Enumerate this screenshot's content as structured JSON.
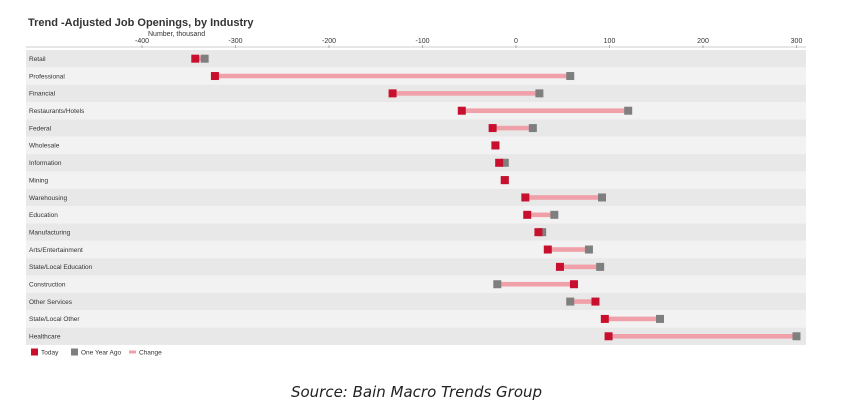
{
  "chart_data": {
    "type": "dumbbell",
    "title": "Trend -Adjusted Job Openings, by Industry",
    "subtitle": "Number, thousand",
    "xlim": [
      -400,
      300
    ],
    "xticks": [
      -400,
      -300,
      -200,
      -100,
      0,
      100,
      200,
      300
    ],
    "categories": [
      "Retail",
      "Professional",
      "Financial",
      "Restaurants/Hotels",
      "Federal",
      "Wholesale",
      "Information",
      "Mining",
      "Warehousing",
      "Education",
      "Manufacturing",
      "Arts/Entertainment",
      "State/Local Education",
      "Construction",
      "Other Services",
      "State/Local Other",
      "Healthcare"
    ],
    "series": [
      {
        "name": "Today",
        "color": "#c8102e",
        "values": [
          -343,
          -322,
          -132,
          -58,
          -25,
          -22,
          -18,
          -12,
          10,
          12,
          24,
          34,
          47,
          62,
          85,
          95,
          99
        ]
      },
      {
        "name": "One Year Ago",
        "color": "#7f7f7f",
        "values": [
          -333,
          58,
          25,
          120,
          18,
          -22,
          -12,
          -12,
          92,
          41,
          28,
          78,
          90,
          -20,
          58,
          154,
          300
        ]
      }
    ],
    "legend": [
      {
        "label": "Today",
        "color": "#c8102e"
      },
      {
        "label": "One Year Ago",
        "color": "#7f7f7f"
      },
      {
        "label": "Change",
        "color": "#f0a0a8"
      }
    ],
    "legend_position": "bottom-left",
    "grid": false
  },
  "source": "Source: Bain Macro Trends Group"
}
